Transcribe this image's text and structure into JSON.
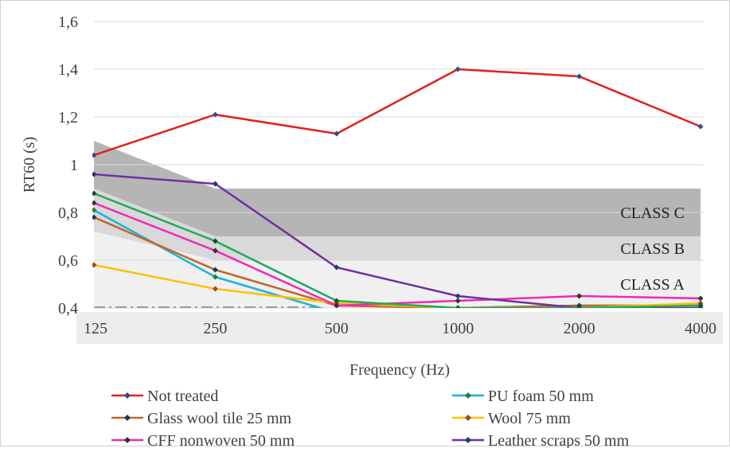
{
  "chart_data": {
    "type": "line",
    "xlabel": "Frequency (Hz)",
    "ylabel": "RT60 (s)",
    "categories": [
      "125",
      "250",
      "500",
      "1000",
      "2000",
      "4000"
    ],
    "ylim": [
      0.4,
      1.6
    ],
    "yticks": [
      "0,4",
      "0,6",
      "0,8",
      "1",
      "1,2",
      "1,4",
      "1,6"
    ],
    "grid": "horizontal",
    "legend_position": "bottom",
    "bands": [
      {
        "label": "CLASS C",
        "upper": [
          1.1,
          0.9,
          0.9,
          0.9,
          0.9,
          0.9
        ],
        "lower": [
          0.9,
          0.7,
          0.7,
          0.7,
          0.7,
          0.7
        ],
        "color": "#b5b5b5"
      },
      {
        "label": "CLASS B",
        "upper": [
          0.9,
          0.7,
          0.7,
          0.7,
          0.7,
          0.7
        ],
        "lower": [
          0.72,
          0.6,
          0.6,
          0.6,
          0.6,
          0.6
        ],
        "color": "#d9d9d9"
      },
      {
        "label": "CLASS A",
        "upper": [
          0.72,
          0.6,
          0.6,
          0.6,
          0.6,
          0.6
        ],
        "lower": [
          0.4,
          0.4,
          0.4,
          0.4,
          0.4,
          0.4
        ],
        "color": "#f0f0f0"
      }
    ],
    "reference_line": {
      "value": 0.4,
      "style": "dash-dot",
      "extent": [
        0,
        1.85
      ]
    },
    "series": [
      {
        "name": "Not treated",
        "color": "#e02020",
        "marker_color": "#2e4f86",
        "marker": "diamond",
        "values": [
          1.04,
          1.21,
          1.13,
          1.4,
          1.37,
          1.16
        ]
      },
      {
        "name": "PU foam 50 mm",
        "color": "#19b4dd",
        "marker_color": "#2e7d32",
        "marker": "diamond",
        "values": [
          0.81,
          0.53,
          0.38,
          0.4,
          0.41,
          0.41
        ]
      },
      {
        "name": "Glass wool tile 25 mm",
        "color": "#c0662a",
        "marker_color": "#1f3a55",
        "marker": "diamond",
        "values": [
          0.78,
          0.56,
          0.41,
          0.4,
          0.41,
          0.41
        ]
      },
      {
        "name": "Wool  75 mm",
        "color": "#ffc000",
        "marker_color": "#9c4f1c",
        "marker": "diamond",
        "values": [
          0.58,
          0.48,
          0.42,
          0.4,
          0.4,
          0.42
        ]
      },
      {
        "name": "CFF nonwoven 50 mm",
        "color": "#f028b8",
        "marker_color": "#3a3030",
        "marker": "diamond",
        "values": [
          0.84,
          0.64,
          0.41,
          0.43,
          0.45,
          0.44
        ]
      },
      {
        "name": "Leather scraps 50 mm",
        "color": "#7030a0",
        "marker_color": "#1f3a6e",
        "marker": "diamond",
        "values": [
          0.96,
          0.92,
          0.57,
          0.45,
          0.4,
          0.4
        ]
      },
      {
        "name": "",
        "color": "#1faa59",
        "marker_color": "#1b4d2e",
        "marker": "diamond",
        "values": [
          0.88,
          0.68,
          0.43,
          0.4,
          0.4,
          0.41
        ]
      }
    ],
    "legend_order": [
      [
        "Not treated",
        "PU foam 50 mm"
      ],
      [
        "Glass wool tile 25 mm",
        "Wool  75 mm"
      ],
      [
        "CFF nonwoven 50 mm",
        "Leather scraps 50 mm"
      ]
    ]
  }
}
